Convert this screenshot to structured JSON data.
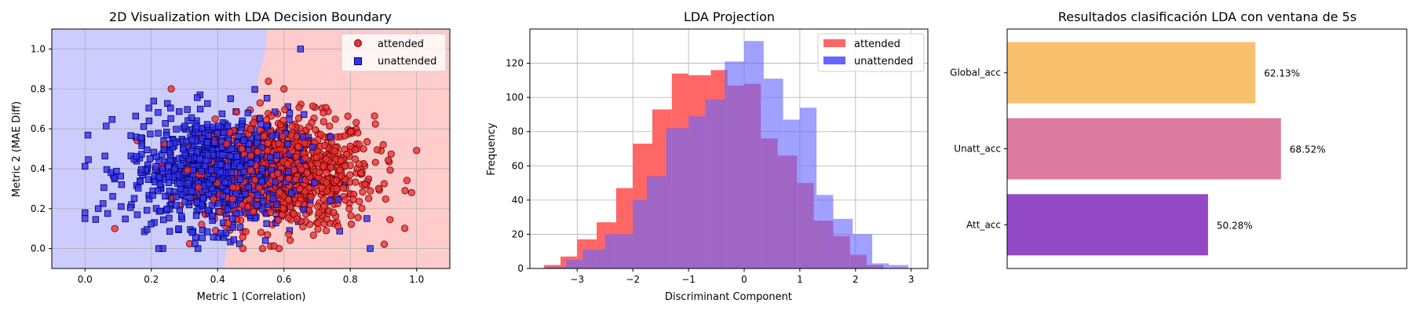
{
  "chart_data": [
    {
      "type": "scatter",
      "title": "2D Visualization with LDA Decision Boundary",
      "xlabel": "Metric 1 (Correlation)",
      "ylabel": "Metric 2 (MAE Diff)",
      "xlim": [
        -0.1,
        1.1
      ],
      "ylim": [
        -0.1,
        1.1
      ],
      "xticks": [
        "0.0",
        "0.2",
        "0.4",
        "0.6",
        "0.8",
        "1.0"
      ],
      "yticks": [
        "0.0",
        "0.2",
        "0.4",
        "0.6",
        "0.8",
        "1.0"
      ],
      "grid": true,
      "legend_position": "upper-right",
      "decision_boundary": {
        "left_region": "unattended",
        "right_region": "attended",
        "boundary_x_at_y": [
          [
            -0.1,
            0.42
          ],
          [
            0.1,
            0.435
          ],
          [
            0.3,
            0.46
          ],
          [
            0.5,
            0.49
          ],
          [
            0.7,
            0.52
          ],
          [
            0.85,
            0.52
          ],
          [
            0.95,
            0.54
          ],
          [
            1.1,
            0.55
          ]
        ],
        "left_color": "#ccccff",
        "right_color": "#ffcccc"
      },
      "series": [
        {
          "name": "attended",
          "marker": "circle",
          "color": "#ee3333",
          "edge_color": "#660000",
          "approx_count": 900,
          "x_center": 0.61,
          "x_spread": 0.13,
          "y_center": 0.38,
          "y_spread": 0.14,
          "notable_points": [
            [
              0.985,
              0.28
            ],
            [
              0.965,
              0.29
            ],
            [
              0.26,
              0.8
            ],
            [
              0.6,
              0.8
            ],
            [
              0.09,
              0.1
            ]
          ]
        },
        {
          "name": "unattended",
          "marker": "square",
          "color": "#3333ee",
          "edge_color": "#000066",
          "approx_count": 900,
          "x_center": 0.4,
          "x_spread": 0.13,
          "y_center": 0.39,
          "y_spread": 0.14,
          "notable_points": [
            [
              0.0,
              0.15
            ],
            [
              0.04,
              0.2
            ],
            [
              0.65,
              1.0
            ],
            [
              0.85,
              0.15
            ],
            [
              0.86,
              0.0
            ]
          ]
        }
      ]
    },
    {
      "type": "histogram",
      "title": "LDA Projection",
      "xlabel": "Discriminant Component",
      "ylabel": "Frequency",
      "xlim": [
        -3.85,
        3.3
      ],
      "ylim": [
        0,
        140
      ],
      "xticks": [
        "−3",
        "−2",
        "−1",
        "0",
        "1",
        "2",
        "3"
      ],
      "yticks": [
        "0",
        "20",
        "40",
        "60",
        "80",
        "100",
        "120"
      ],
      "grid": true,
      "legend_position": "upper-right",
      "series": [
        {
          "name": "attended",
          "color": "#ff6666",
          "bins": [
            [
              -3.6,
              -3.3,
              2
            ],
            [
              -3.3,
              -3.0,
              7
            ],
            [
              -3.0,
              -2.65,
              17
            ],
            [
              -2.65,
              -2.3,
              27
            ],
            [
              -2.3,
              -2.0,
              47
            ],
            [
              -2.0,
              -1.65,
              73
            ],
            [
              -1.65,
              -1.3,
              93
            ],
            [
              -1.3,
              -1.0,
              114
            ],
            [
              -1.0,
              -0.6,
              113
            ],
            [
              -0.6,
              -0.3,
              116
            ],
            [
              -0.3,
              0.0,
              107
            ],
            [
              0.0,
              0.3,
              108
            ],
            [
              0.3,
              0.6,
              76
            ],
            [
              0.6,
              0.95,
              66
            ],
            [
              0.95,
              1.25,
              50
            ],
            [
              1.25,
              1.6,
              28
            ],
            [
              1.6,
              1.9,
              19
            ],
            [
              1.9,
              2.2,
              8
            ],
            [
              2.2,
              2.5,
              2
            ]
          ]
        },
        {
          "name": "unattended",
          "color": "#6666ff",
          "bins": [
            [
              -3.55,
              -3.2,
              1
            ],
            [
              -3.2,
              -2.9,
              5
            ],
            [
              -2.9,
              -2.5,
              11
            ],
            [
              -2.5,
              -2.0,
              20
            ],
            [
              -2.0,
              -1.75,
              40
            ],
            [
              -1.75,
              -1.4,
              54
            ],
            [
              -1.4,
              -1.0,
              82
            ],
            [
              -1.0,
              -0.7,
              89
            ],
            [
              -0.7,
              -0.35,
              99
            ],
            [
              -0.35,
              0.0,
              121
            ],
            [
              0.0,
              0.35,
              133
            ],
            [
              0.35,
              0.7,
              111
            ],
            [
              0.7,
              1.0,
              87
            ],
            [
              1.0,
              1.3,
              94
            ],
            [
              1.3,
              1.6,
              43
            ],
            [
              1.6,
              1.95,
              29
            ],
            [
              1.95,
              2.3,
              20
            ],
            [
              2.3,
              2.6,
              3
            ],
            [
              2.6,
              2.95,
              2
            ]
          ]
        }
      ],
      "overlap_color": "#6622cc"
    },
    {
      "type": "bar",
      "orientation": "horizontal",
      "title": "Resultados clasificación LDA con ventana de 5s",
      "categories": [
        "Att_acc",
        "Unatt_acc",
        "Global_acc"
      ],
      "values": [
        50.28,
        68.52,
        62.13
      ],
      "value_labels": [
        "50.28%",
        "68.52%",
        "62.13%"
      ],
      "colors": [
        "#9349c6",
        "#dd7b9f",
        "#f9c06e"
      ],
      "xlim": [
        0,
        100
      ],
      "show_xticks": false
    }
  ]
}
